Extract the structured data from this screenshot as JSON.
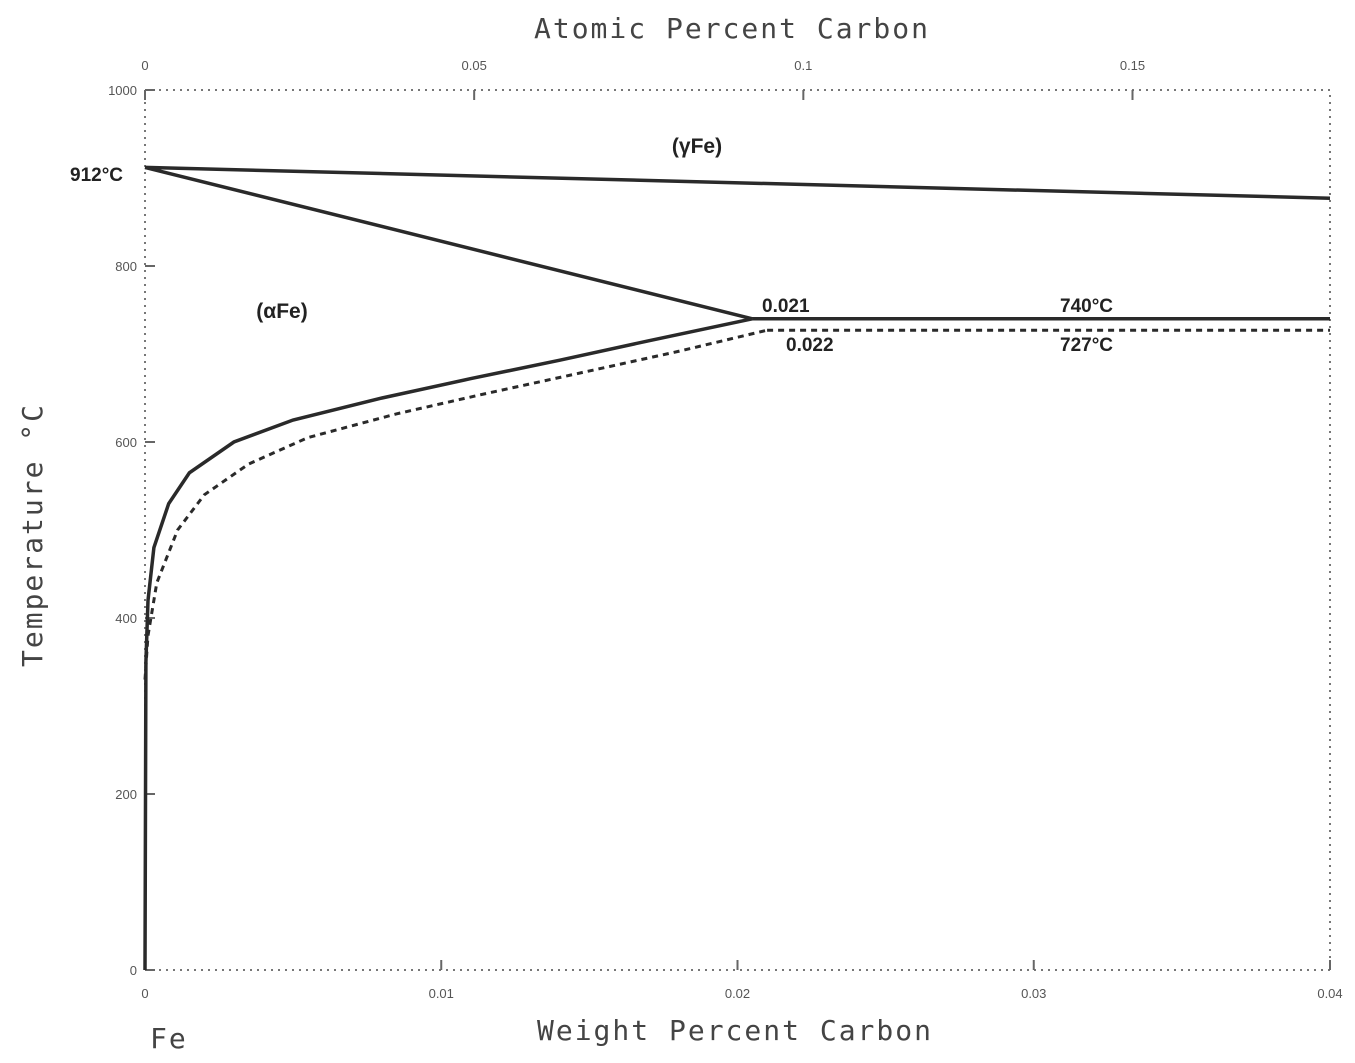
{
  "chart_data": {
    "type": "line",
    "title": "",
    "xlabel": "Weight Percent Carbon",
    "ylabel": "Temperature °C",
    "x2label": "Atomic Percent Carbon",
    "xlim": [
      0,
      0.04
    ],
    "ylim": [
      0,
      1000
    ],
    "x2lim": [
      0,
      0.18
    ],
    "xticks": [
      "0",
      "0.01",
      "0.02",
      "0.03",
      "0.04"
    ],
    "x2ticks": [
      "0",
      "0.05",
      "0.1",
      "0.15"
    ],
    "yticks": [
      "0",
      "200",
      "400",
      "600",
      "800",
      "1000"
    ],
    "element_label": "Fe",
    "phases": [
      "(γFe)",
      "(αFe)"
    ],
    "annotations": [
      "912°C",
      "0.021",
      "0.022",
      "740°C",
      "727°C"
    ],
    "series": [
      {
        "style": "solid",
        "x": [
          0,
          0.04
        ],
        "y": [
          912,
          877
        ]
      },
      {
        "style": "solid",
        "x": [
          0,
          0.0205
        ],
        "y": [
          912,
          740
        ]
      },
      {
        "style": "solid",
        "x": [
          0.0205,
          0.04
        ],
        "y": [
          740,
          740
        ]
      },
      {
        "style": "solid",
        "x": [
          0,
          3e-05,
          0.0001,
          0.0003,
          0.0008,
          0.0015,
          0.003,
          0.005,
          0.008,
          0.011,
          0.014,
          0.017,
          0.0205
        ],
        "y": [
          0,
          350,
          420,
          480,
          530,
          565,
          600,
          625,
          650,
          672,
          693,
          715,
          740
        ]
      },
      {
        "style": "dashed",
        "x": [
          0.021,
          0.04
        ],
        "y": [
          727,
          727
        ]
      },
      {
        "style": "dashed",
        "x": [
          0,
          0.0001,
          0.0004,
          0.0011,
          0.002,
          0.0035,
          0.0055,
          0.0085,
          0.0115,
          0.0145,
          0.018,
          0.021
        ],
        "y": [
          330,
          380,
          440,
          500,
          540,
          575,
          605,
          632,
          655,
          677,
          703,
          727
        ]
      }
    ]
  }
}
